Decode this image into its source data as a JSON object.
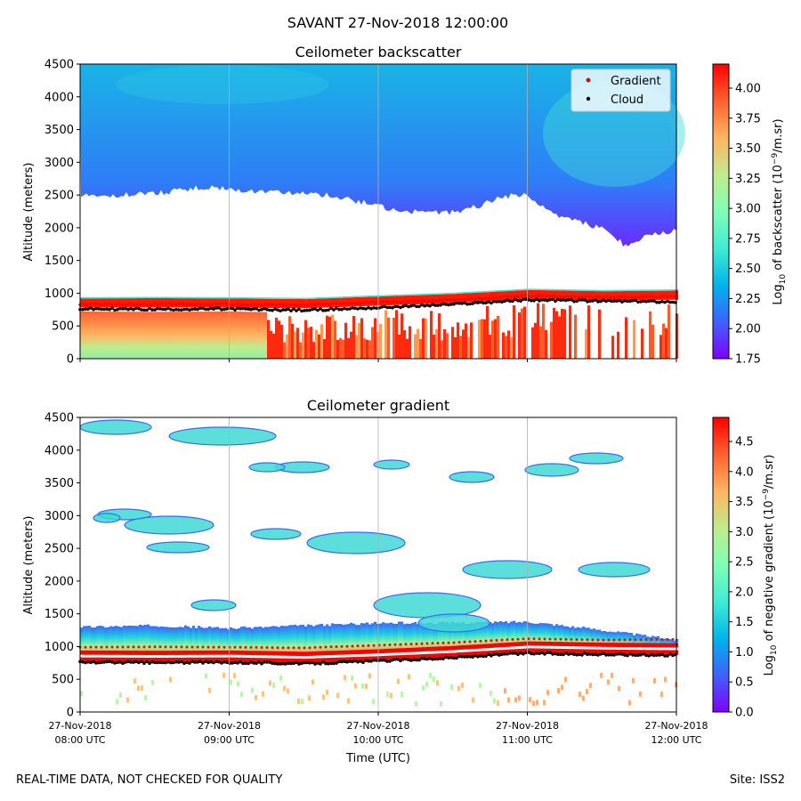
{
  "suptitle": "SAVANT 27-Nov-2018 12:00:00",
  "footer": {
    "left": "REAL-TIME DATA, NOT CHECKED FOR QUALITY",
    "right": "Site: ISS2"
  },
  "colormap": [
    "#8000ff",
    "#4062fa",
    "#00b5eb",
    "#40ecd4",
    "#80ffb4",
    "#c0eb8d",
    "#ffb462",
    "#ff6232",
    "#ff0000"
  ],
  "chart_data": [
    {
      "type": "heatmap",
      "title": "Ceilometer backscatter",
      "xlabel": "",
      "ylabel": "Altitude (meters)",
      "ylim": [
        0,
        4500
      ],
      "yticks": [
        0,
        500,
        1000,
        1500,
        2000,
        2500,
        3000,
        3500,
        4000,
        4500
      ],
      "xlim": [
        "2018-11-27T08:00Z",
        "2018-11-27T12:00Z"
      ],
      "xticks": [
        "2018-11-27T08:00Z",
        "2018-11-27T09:00Z",
        "2018-11-27T10:00Z",
        "2018-11-27T11:00Z",
        "2018-11-27T12:00Z"
      ],
      "grid": "x",
      "colorbar": {
        "label_pre": "Log",
        "label_sub": "10",
        "label_mid": " of backscatter (10",
        "label_sup": "−9",
        "label_post": "/m.sr)",
        "range": [
          1.75,
          4.2
        ],
        "ticks": [
          "1.75",
          "2.00",
          "2.25",
          "2.50",
          "2.75",
          "3.00",
          "3.25",
          "3.50",
          "3.75",
          "4.00"
        ]
      },
      "legend": {
        "placement": "top-right",
        "entries": [
          {
            "label": "Gradient",
            "color": "#ff0000"
          },
          {
            "label": "Cloud",
            "color": "#000000"
          }
        ]
      },
      "signal_top": {
        "x": [
          "08:00",
          "08:30",
          "08:50",
          "09:10",
          "09:40",
          "09:50",
          "10:00",
          "10:10",
          "10:30",
          "10:40",
          "10:50",
          "11:00",
          "11:10",
          "11:20",
          "11:30",
          "11:40",
          "11:50",
          "12:00"
        ],
        "y": [
          2480,
          2520,
          2620,
          2560,
          2500,
          2420,
          2330,
          2250,
          2230,
          2330,
          2480,
          2500,
          2200,
          2100,
          2000,
          1720,
          1900,
          1950
        ]
      },
      "gradient_height": {
        "x": [
          "08:00",
          "08:30",
          "09:00",
          "09:30",
          "10:00",
          "10:30",
          "11:00",
          "11:30",
          "12:00"
        ],
        "y": [
          830,
          835,
          830,
          820,
          860,
          900,
          960,
          940,
          950
        ]
      },
      "cloud_base": {
        "x": [
          "08:00",
          "08:30",
          "09:00",
          "09:30",
          "10:00",
          "10:30",
          "11:00",
          "11:30",
          "12:00"
        ],
        "y": [
          760,
          755,
          760,
          740,
          780,
          830,
          900,
          880,
          870
        ]
      }
    },
    {
      "type": "heatmap",
      "title": "Ceilometer gradient",
      "xlabel": "Time (UTC)",
      "ylabel": "Altitude (meters)",
      "ylim": [
        0,
        4500
      ],
      "yticks": [
        0,
        500,
        1000,
        1500,
        2000,
        2500,
        3000,
        3500,
        4000,
        4500
      ],
      "xlim": [
        "2018-11-27T08:00Z",
        "2018-11-27T12:00Z"
      ],
      "xtick_labels": [
        {
          "date": "27-Nov-2018",
          "time": "08:00 UTC"
        },
        {
          "date": "27-Nov-2018",
          "time": "09:00 UTC"
        },
        {
          "date": "27-Nov-2018",
          "time": "10:00 UTC"
        },
        {
          "date": "27-Nov-2018",
          "time": "11:00 UTC"
        },
        {
          "date": "27-Nov-2018",
          "time": "12:00 UTC"
        }
      ],
      "grid": "x",
      "colorbar": {
        "label_pre": "Log",
        "label_sub": "10",
        "label_mid": " of negative gradient (10",
        "label_sup": "−9",
        "label_post": "/m.sr)",
        "range": [
          0.0,
          4.9
        ],
        "ticks": [
          "0.0",
          "0.5",
          "1.0",
          "1.5",
          "2.0",
          "2.5",
          "3.0",
          "3.5",
          "4.0",
          "4.5"
        ]
      },
      "layer_top": {
        "x": [
          "08:00",
          "08:30",
          "09:00",
          "09:30",
          "10:00",
          "10:30",
          "11:00",
          "11:30",
          "12:00"
        ],
        "y": [
          1300,
          1320,
          1280,
          1320,
          1360,
          1360,
          1380,
          1250,
          1100
        ]
      }
    }
  ]
}
